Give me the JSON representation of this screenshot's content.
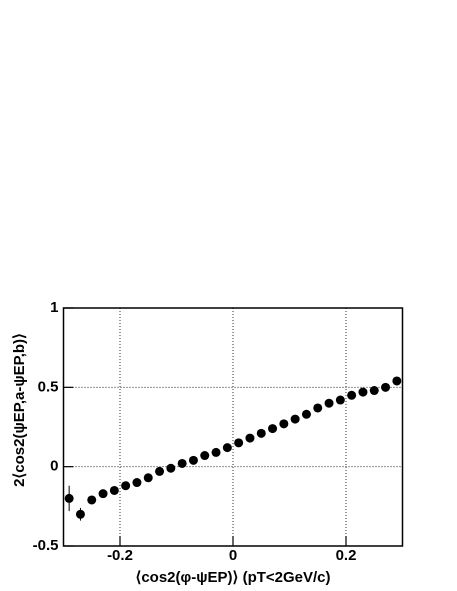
{
  "chart_data": {
    "type": "scatter",
    "x_label": "⟨cos2(φ-ψEP)⟩ (pT<2GeV/c)",
    "y_label": "2⟨cos2(ψEP,a-ψEP,b)⟩",
    "x": [
      -0.29,
      -0.27,
      -0.25,
      -0.23,
      -0.21,
      -0.19,
      -0.17,
      -0.15,
      -0.13,
      -0.11,
      -0.09,
      -0.07,
      -0.05,
      -0.03,
      -0.01,
      0.01,
      0.03,
      0.05,
      0.07,
      0.09,
      0.11,
      0.13,
      0.15,
      0.17,
      0.19,
      0.21,
      0.23,
      0.25,
      0.27,
      0.29
    ],
    "values": [
      -0.2,
      -0.3,
      -0.21,
      -0.17,
      -0.15,
      -0.12,
      -0.1,
      -0.07,
      -0.03,
      -0.01,
      0.02,
      0.04,
      0.07,
      0.09,
      0.12,
      0.15,
      0.18,
      0.21,
      0.24,
      0.27,
      0.3,
      0.33,
      0.37,
      0.4,
      0.42,
      0.45,
      0.47,
      0.48,
      0.5,
      0.54
    ],
    "errors": [
      0.08,
      0.04,
      0.02,
      0.01,
      0.01,
      0.01,
      0.01,
      0.01,
      0.01,
      0.01,
      0.01,
      0.01,
      0.01,
      0.01,
      0.01,
      0.01,
      0.01,
      0.01,
      0.01,
      0.01,
      0.01,
      0.01,
      0.01,
      0.01,
      0.01,
      0.01,
      0.01,
      0.01,
      0.01,
      0.01
    ],
    "color": "#000000",
    "xlim": [
      -0.3,
      0.3
    ],
    "xticks": [
      -0.2,
      0,
      0.2
    ],
    "ylim": [
      -0.5,
      1
    ],
    "yticks": [
      -0.5,
      0,
      0.5,
      1
    ],
    "grid": true
  }
}
